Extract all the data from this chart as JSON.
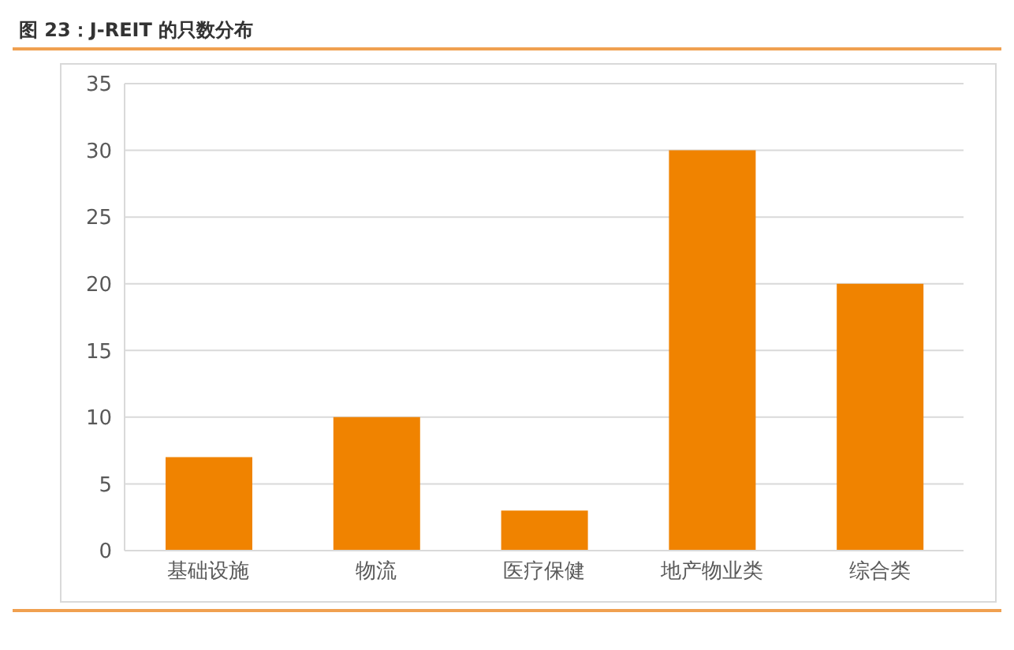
{
  "chart_data": {
    "type": "bar",
    "title": "图 23：J-REIT 的只数分布",
    "categories": [
      "基础设施",
      "物流",
      "医疗保健",
      "地产物业类",
      "综合类"
    ],
    "values": [
      7,
      10,
      3,
      30,
      20
    ],
    "color": "#f08300",
    "ylim": [
      0,
      35
    ],
    "yticks": [
      0,
      5,
      10,
      15,
      20,
      25,
      30,
      35
    ],
    "grid": "y"
  }
}
